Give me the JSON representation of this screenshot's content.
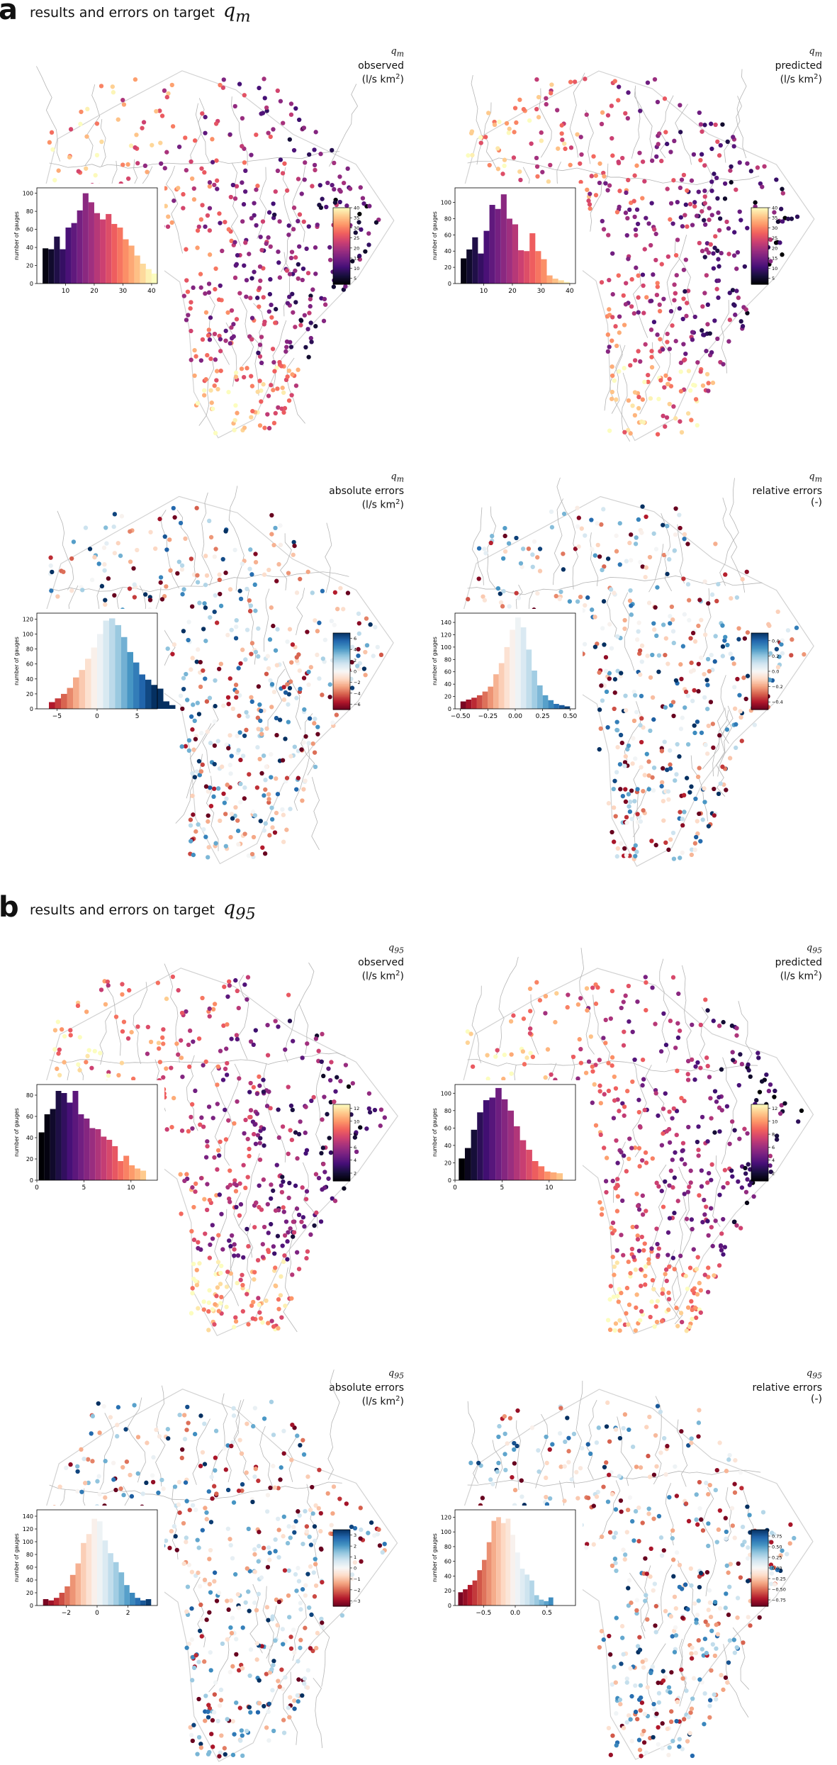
{
  "sections": [
    {
      "letter": "a",
      "title": "results and errors on target",
      "target": "q",
      "target_sub": "m"
    },
    {
      "letter": "b",
      "title": "results and errors on target",
      "target": "q",
      "target_sub": "95"
    }
  ],
  "colors": {
    "river": "#b4b4b4",
    "river_light": "#d2d2d2",
    "magma": [
      "#000004",
      "#180f3d",
      "#440f76",
      "#721f81",
      "#9e2f7f",
      "#cd4071",
      "#f1605d",
      "#fd9668",
      "#feca8d",
      "#fcfdbf"
    ],
    "rdbu": [
      "#67001f",
      "#b2182b",
      "#d6604d",
      "#f4a582",
      "#fddbc7",
      "#f7f7f7",
      "#d1e5f0",
      "#92c5de",
      "#4393c3",
      "#2166ac",
      "#053061"
    ]
  },
  "chart_data": [
    {
      "type": "scatter",
      "panel": "a1",
      "target": "q",
      "target_sub": "m",
      "line1": "observed",
      "line2": "(l/s km",
      "colormap": "magma",
      "colorbar_ticks": [
        "5",
        "10",
        "15",
        "20",
        "25",
        "30",
        "35",
        "40"
      ],
      "colorbar_range": [
        2,
        40
      ],
      "hist": {
        "ylabel": "number of gauges",
        "xticks": [
          10,
          20,
          30,
          40
        ],
        "xrange": [
          0,
          42
        ],
        "yticks": [
          0,
          20,
          40,
          60,
          80,
          100
        ],
        "yrange": [
          0,
          106
        ],
        "bins_x0": 2,
        "bin_width": 2,
        "counts": [
          39,
          38,
          52,
          38,
          62,
          67,
          81,
          100,
          90,
          78,
          71,
          77,
          66,
          62,
          49,
          42,
          31,
          22,
          16,
          11
        ]
      }
    },
    {
      "type": "scatter",
      "panel": "a2",
      "target": "q",
      "target_sub": "m",
      "line1": "predicted",
      "line2": "(l/s km",
      "colormap": "magma",
      "colorbar_ticks": [
        "5",
        "10",
        "15",
        "20",
        "25",
        "30",
        "35",
        "40"
      ],
      "colorbar_range": [
        2,
        40
      ],
      "hist": {
        "ylabel": "number of gauges",
        "xticks": [
          10,
          20,
          30,
          40
        ],
        "xrange": [
          0,
          42
        ],
        "yticks": [
          0,
          20,
          40,
          60,
          80,
          100
        ],
        "yrange": [
          0,
          118
        ],
        "bins_x0": 2,
        "bin_width": 2,
        "counts": [
          31,
          42,
          57,
          37,
          65,
          97,
          92,
          110,
          80,
          73,
          41,
          40,
          62,
          40,
          30,
          10,
          6,
          4,
          2
        ]
      }
    },
    {
      "type": "scatter",
      "panel": "a3",
      "target": "q",
      "target_sub": "m",
      "line1": "absolute errors",
      "line2": "(l/s km",
      "colormap": "rdbu",
      "colorbar_ticks": [
        "-6",
        "-4",
        "-2",
        "0",
        "2",
        "4",
        "6"
      ],
      "colorbar_range": [
        -7,
        7
      ],
      "hist": {
        "ylabel": "number of gauges",
        "xticks": [
          -5,
          0,
          5
        ],
        "xrange": [
          -7.5,
          7.5
        ],
        "yticks": [
          0,
          20,
          40,
          60,
          80,
          100,
          120
        ],
        "yrange": [
          0,
          128
        ],
        "bins_x0": -6,
        "bin_width": 0.75,
        "counts": [
          9,
          14,
          20,
          28,
          42,
          52,
          67,
          82,
          100,
          118,
          121,
          112,
          96,
          76,
          62,
          46,
          39,
          32,
          27,
          10,
          5
        ]
      }
    },
    {
      "type": "scatter",
      "panel": "a4",
      "target": "q",
      "target_sub": "m",
      "line1": "relative errors",
      "line2": "(-)",
      "colormap": "rdbu",
      "colorbar_ticks": [
        "-0.4",
        "-0.2",
        "0.0",
        "0.2",
        "0.4"
      ],
      "colorbar_range": [
        -0.5,
        0.5
      ],
      "hist": {
        "ylabel": "number of gauges",
        "xticks": [
          -0.5,
          -0.25,
          0.0,
          0.25,
          0.5
        ],
        "xticklabels": [
          "-0.50",
          "-0.25",
          "0.00",
          "0.25",
          "0.50"
        ],
        "xrange": [
          -0.55,
          0.55
        ],
        "yticks": [
          0,
          20,
          40,
          60,
          80,
          100,
          120,
          140
        ],
        "yrange": [
          0,
          155
        ],
        "bins_x0": -0.5,
        "bin_width": 0.05,
        "counts": [
          12,
          15,
          18,
          22,
          28,
          36,
          56,
          74,
          100,
          128,
          148,
          132,
          96,
          62,
          38,
          22,
          14,
          8,
          6,
          4
        ]
      }
    },
    {
      "type": "scatter",
      "panel": "b1",
      "target": "q",
      "target_sub": "95",
      "line1": "observed",
      "line2": "(l/s km",
      "colormap": "magma",
      "colorbar_ticks": [
        "2",
        "4",
        "6",
        "8",
        "10",
        "12"
      ],
      "colorbar_range": [
        0.8,
        12.6
      ],
      "hist": {
        "ylabel": "number of gauges",
        "xticks": [
          0,
          5,
          10
        ],
        "xrange": [
          0,
          12.8
        ],
        "yticks": [
          0,
          20,
          40,
          60,
          80
        ],
        "yrange": [
          0,
          90
        ],
        "bins_x0": 0.2,
        "bin_width": 0.6,
        "counts": [
          45,
          62,
          67,
          84,
          82,
          73,
          84,
          62,
          58,
          49,
          48,
          41,
          38,
          32,
          18,
          23,
          14,
          11,
          9
        ]
      }
    },
    {
      "type": "scatter",
      "panel": "b2",
      "target": "q",
      "target_sub": "95",
      "line1": "predicted",
      "line2": "(l/s km",
      "colormap": "magma",
      "colorbar_ticks": [
        "2",
        "4",
        "6",
        "8",
        "10",
        "12"
      ],
      "colorbar_range": [
        0.8,
        12.6
      ],
      "hist": {
        "ylabel": "number of gauges",
        "xticks": [
          0,
          5,
          10
        ],
        "xrange": [
          0,
          12.8
        ],
        "yticks": [
          0,
          20,
          40,
          60,
          80,
          100
        ],
        "yrange": [
          0,
          110
        ],
        "bins_x0": 0.4,
        "bin_width": 0.65,
        "counts": [
          25,
          37,
          58,
          78,
          92,
          95,
          106,
          93,
          80,
          62,
          46,
          35,
          22,
          16,
          10,
          9,
          8
        ]
      }
    },
    {
      "type": "scatter",
      "panel": "b3",
      "target": "q",
      "target_sub": "95",
      "line1": "absolute errors",
      "line2": "(l/s km",
      "colormap": "rdbu",
      "colorbar_ticks": [
        "-3",
        "-2",
        "-1",
        "0",
        "1",
        "2",
        "3"
      ],
      "colorbar_range": [
        -3.5,
        3.5
      ],
      "hist": {
        "ylabel": "number of gauges",
        "xticks": [
          -2,
          0,
          2
        ],
        "xrange": [
          -3.9,
          3.9
        ],
        "yticks": [
          0,
          20,
          40,
          60,
          80,
          100,
          120,
          140
        ],
        "yrange": [
          0,
          150
        ],
        "bins_x0": -3.5,
        "bin_width": 0.35,
        "counts": [
          10,
          8,
          12,
          20,
          30,
          48,
          66,
          98,
          112,
          136,
          132,
          102,
          82,
          68,
          52,
          32,
          20,
          12,
          8,
          10
        ]
      }
    },
    {
      "type": "scatter",
      "panel": "b4",
      "target": "q",
      "target_sub": "95",
      "line1": "relative errors",
      "line2": "(-)",
      "colormap": "rdbu",
      "colorbar_ticks": [
        "-0.75",
        "-0.50",
        "-0.25",
        "0.00",
        "0.25",
        "0.50",
        "0.75"
      ],
      "colorbar_range": [
        -0.9,
        0.9
      ],
      "hist": {
        "ylabel": "number of gauges",
        "xticks": [
          -0.5,
          0.0,
          0.5
        ],
        "xticklabels": [
          "-0.5",
          "0.0",
          "0.5"
        ],
        "xrange": [
          -0.95,
          0.95
        ],
        "yticks": [
          0,
          20,
          40,
          60,
          80,
          100,
          120
        ],
        "yrange": [
          0,
          130
        ],
        "bins_x0": -0.9,
        "bin_width": 0.075,
        "counts": [
          18,
          22,
          28,
          34,
          48,
          62,
          86,
          115,
          120,
          112,
          118,
          96,
          72,
          50,
          42,
          34,
          14,
          8,
          6,
          11
        ]
      }
    }
  ]
}
